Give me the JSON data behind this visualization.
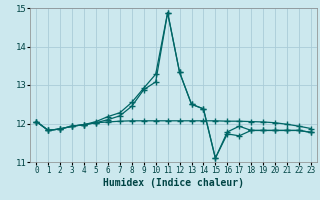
{
  "title": "",
  "xlabel": "Humidex (Indice chaleur)",
  "ylabel": "",
  "background_color": "#cce8ee",
  "grid_color": "#aaccd8",
  "line_color": "#006666",
  "xlim": [
    -0.5,
    23.5
  ],
  "ylim": [
    11,
    15
  ],
  "yticks": [
    11,
    12,
    13,
    14,
    15
  ],
  "xticks": [
    0,
    1,
    2,
    3,
    4,
    5,
    6,
    7,
    8,
    9,
    10,
    11,
    12,
    13,
    14,
    15,
    16,
    17,
    18,
    19,
    20,
    21,
    22,
    23
  ],
  "series": [
    {
      "x": [
        0,
        1,
        2,
        3,
        4,
        5,
        6,
        7,
        8,
        9,
        10,
        11,
        12,
        13,
        14,
        15,
        16,
        17,
        18,
        19,
        20,
        21,
        22,
        23
      ],
      "y": [
        12.05,
        11.82,
        11.86,
        11.93,
        11.97,
        12.02,
        12.04,
        12.06,
        12.07,
        12.07,
        12.07,
        12.07,
        12.07,
        12.07,
        12.07,
        12.07,
        12.06,
        12.06,
        12.05,
        12.04,
        12.02,
        11.98,
        11.93,
        11.87
      ]
    },
    {
      "x": [
        0,
        1,
        2,
        3,
        4,
        5,
        6,
        7,
        8,
        9,
        10,
        11,
        12,
        13,
        14,
        15,
        16,
        17,
        18,
        19,
        20,
        21,
        22,
        23
      ],
      "y": [
        12.05,
        11.82,
        11.86,
        11.93,
        11.97,
        12.02,
        12.1,
        12.2,
        12.45,
        12.88,
        13.08,
        14.88,
        13.33,
        12.5,
        12.38,
        11.1,
        11.73,
        11.68,
        11.82,
        11.82,
        11.82,
        11.82,
        11.82,
        11.77
      ]
    },
    {
      "x": [
        0,
        1,
        2,
        3,
        4,
        5,
        6,
        7,
        8,
        9,
        10,
        11,
        12,
        13,
        14,
        15,
        16,
        17,
        18,
        19,
        20,
        21,
        22,
        23
      ],
      "y": [
        12.05,
        11.82,
        11.86,
        11.93,
        11.97,
        12.05,
        12.18,
        12.28,
        12.55,
        12.92,
        13.28,
        14.88,
        13.33,
        12.5,
        12.38,
        11.1,
        11.78,
        11.93,
        11.82,
        11.82,
        11.82,
        11.82,
        11.82,
        11.77
      ]
    }
  ]
}
